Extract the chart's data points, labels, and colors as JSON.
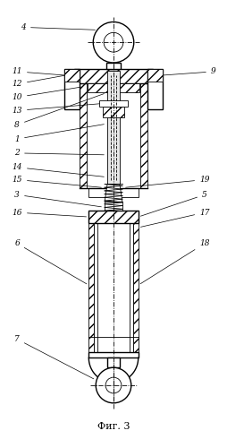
{
  "title": "Фиг. 3",
  "background_color": "#ffffff",
  "line_color": "#000000",
  "fig_width": 2.55,
  "fig_height": 5.0,
  "dpi": 100
}
